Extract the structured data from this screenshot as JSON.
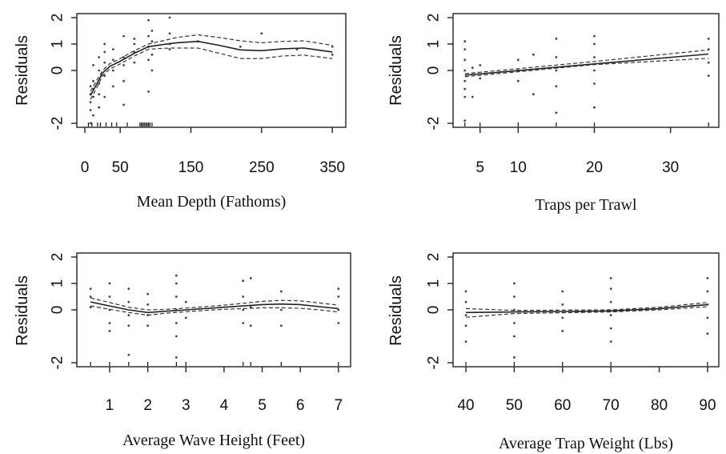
{
  "chart_data": [
    {
      "type": "line",
      "xlabel": "Mean Depth (Fathoms)",
      "ylabel": "Residuals",
      "xlim": [
        0,
        360
      ],
      "ylim": [
        -2,
        2
      ],
      "xticks": [
        0,
        50,
        150,
        250,
        350
      ],
      "yticks": [
        -2,
        0,
        1,
        2
      ],
      "ytick_labels": [
        "-2",
        "0",
        "1",
        "2"
      ],
      "series": [
        {
          "x": [
            8,
            15,
            25,
            35,
            50,
            70,
            90,
            110,
            130,
            160,
            190,
            220,
            250,
            280,
            310,
            350
          ],
          "y": [
            -0.95,
            -0.6,
            -0.1,
            0.15,
            0.35,
            0.65,
            0.9,
            0.98,
            1.05,
            1.1,
            0.95,
            0.78,
            0.75,
            0.82,
            0.85,
            0.7
          ]
        },
        {
          "x": [
            8,
            15,
            25,
            35,
            50,
            70,
            90,
            110,
            130,
            160,
            190,
            220,
            250,
            280,
            310,
            350
          ],
          "y": [
            -0.8,
            -0.45,
            0.0,
            0.25,
            0.45,
            0.75,
            1.0,
            1.12,
            1.25,
            1.35,
            1.25,
            1.12,
            1.05,
            1.1,
            1.12,
            0.95
          ]
        },
        {
          "x": [
            8,
            15,
            25,
            35,
            50,
            70,
            90,
            110,
            130,
            160,
            190,
            220,
            250,
            280,
            310,
            350
          ],
          "y": [
            -1.1,
            -0.75,
            -0.2,
            0.05,
            0.25,
            0.55,
            0.8,
            0.84,
            0.85,
            0.85,
            0.65,
            0.45,
            0.45,
            0.55,
            0.58,
            0.45
          ]
        }
      ],
      "points": [
        {
          "x": 8,
          "y": [
            -2.0,
            -1.5,
            -1.2,
            -0.9,
            -0.6
          ]
        },
        {
          "x": 12,
          "y": [
            -1.7,
            -1.0,
            -0.7,
            -0.4,
            0.2
          ]
        },
        {
          "x": 20,
          "y": [
            -1.4,
            -0.9,
            -0.5,
            0.0,
            0.5
          ]
        },
        {
          "x": 28,
          "y": [
            -1.0,
            -0.2,
            0.3,
            0.7,
            1.0
          ]
        },
        {
          "x": 40,
          "y": [
            -0.6,
            0.0,
            0.4,
            0.8
          ]
        },
        {
          "x": 55,
          "y": [
            -1.3,
            -0.4,
            0.2,
            0.5,
            1.3
          ]
        },
        {
          "x": 70,
          "y": [
            0.3,
            0.7,
            1.0,
            1.2
          ]
        },
        {
          "x": 90,
          "y": [
            -0.8,
            0.4,
            0.9,
            1.3,
            1.9
          ]
        },
        {
          "x": 95,
          "y": [
            0.0,
            0.6,
            1.1,
            1.5
          ]
        },
        {
          "x": 120,
          "y": [
            0.8,
            1.0,
            1.4,
            2.0
          ]
        },
        {
          "x": 160,
          "y": [
            1.1
          ]
        },
        {
          "x": 220,
          "y": [
            0.9
          ]
        },
        {
          "x": 250,
          "y": [
            1.4
          ]
        },
        {
          "x": 300,
          "y": [
            0.8
          ]
        },
        {
          "x": 350,
          "y": [
            0.6,
            0.9
          ]
        }
      ],
      "rug": [
        5,
        10,
        18,
        22,
        30,
        38,
        45,
        60,
        78,
        80,
        82,
        84,
        86,
        88,
        90,
        92,
        95
      ]
    },
    {
      "type": "line",
      "xlabel": "Traps per Trawl",
      "ylabel": "Residuals",
      "xlim": [
        2.5,
        35.5
      ],
      "ylim": [
        -2,
        2
      ],
      "xticks": [
        5,
        10,
        20,
        30
      ],
      "yticks": [
        -2,
        0,
        1,
        2
      ],
      "ytick_labels": [
        "-2",
        "0",
        "1",
        "2"
      ],
      "series": [
        {
          "x": [
            3,
            35
          ],
          "y": [
            -0.18,
            0.62
          ]
        },
        {
          "x": [
            3,
            20,
            35
          ],
          "y": [
            -0.12,
            0.34,
            0.78
          ]
        },
        {
          "x": [
            3,
            20,
            35
          ],
          "y": [
            -0.24,
            0.22,
            0.46
          ]
        }
      ],
      "points": [
        {
          "x": 3,
          "y": [
            -1.9,
            -1.0,
            -0.7,
            -0.4,
            0.0,
            0.4,
            0.8,
            1.1
          ]
        },
        {
          "x": 4,
          "y": [
            -1.0,
            0.1
          ]
        },
        {
          "x": 5,
          "y": [
            -0.3,
            0.2
          ]
        },
        {
          "x": 10,
          "y": [
            -0.4,
            0.0,
            0.4
          ]
        },
        {
          "x": 12,
          "y": [
            -0.9,
            0.6
          ]
        },
        {
          "x": 15,
          "y": [
            -1.6,
            -0.6,
            0.0,
            0.5,
            1.2
          ]
        },
        {
          "x": 20,
          "y": [
            -1.4,
            -0.5,
            0.0,
            0.5,
            1.0,
            1.3
          ]
        },
        {
          "x": 35,
          "y": [
            -0.2,
            0.3,
            0.8,
            1.2
          ]
        }
      ],
      "rug": [
        3,
        5,
        10,
        15,
        20,
        35
      ]
    },
    {
      "type": "line",
      "xlabel": "Average Wave Height (Feet)",
      "ylabel": "Residuals",
      "xlim": [
        0.35,
        7.15
      ],
      "ylim": [
        -2,
        2
      ],
      "xticks": [
        1,
        2,
        3,
        4,
        5,
        6,
        7
      ],
      "yticks": [
        -2,
        0,
        1,
        2
      ],
      "ytick_labels": [
        "-2",
        "0",
        "1",
        "2"
      ],
      "series": [
        {
          "x": [
            0.5,
            1.0,
            1.5,
            2.0,
            2.5,
            3.0,
            3.5,
            4.0,
            4.5,
            5.0,
            5.5,
            6.0,
            6.5,
            7.0
          ],
          "y": [
            0.3,
            0.15,
            0.0,
            -0.1,
            -0.05,
            0.0,
            0.05,
            0.1,
            0.15,
            0.2,
            0.22,
            0.2,
            0.12,
            0.05
          ]
        },
        {
          "x": [
            0.5,
            1.0,
            1.5,
            2.0,
            2.5,
            3.0,
            3.5,
            4.0,
            4.5,
            5.0,
            5.5,
            6.0,
            6.5,
            7.0
          ],
          "y": [
            0.45,
            0.28,
            0.1,
            0.0,
            0.02,
            0.07,
            0.12,
            0.18,
            0.25,
            0.32,
            0.36,
            0.34,
            0.26,
            0.18
          ]
        },
        {
          "x": [
            0.5,
            1.0,
            1.5,
            2.0,
            2.5,
            3.0,
            3.5,
            4.0,
            4.5,
            5.0,
            5.5,
            6.0,
            6.5,
            7.0
          ],
          "y": [
            0.15,
            0.02,
            -0.1,
            -0.2,
            -0.12,
            -0.07,
            -0.02,
            0.02,
            0.05,
            0.08,
            0.08,
            0.06,
            0.0,
            -0.08
          ]
        }
      ],
      "points": [
        {
          "x": 0.5,
          "y": [
            0.1,
            0.5,
            0.8
          ]
        },
        {
          "x": 1.0,
          "y": [
            -0.8,
            -0.5,
            0.0,
            0.5,
            1.0
          ]
        },
        {
          "x": 1.5,
          "y": [
            -1.7,
            -0.6,
            -0.2,
            0.3,
            0.8
          ]
        },
        {
          "x": 2.0,
          "y": [
            -0.6,
            -0.2,
            0.2,
            0.6
          ]
        },
        {
          "x": 2.75,
          "y": [
            -1.8,
            -1.0,
            -0.5,
            0.0,
            0.5,
            1.0,
            1.3
          ]
        },
        {
          "x": 3.0,
          "y": [
            -0.3,
            0.3
          ]
        },
        {
          "x": 4.5,
          "y": [
            -0.5,
            0.0,
            0.5,
            1.1
          ]
        },
        {
          "x": 4.7,
          "y": [
            -0.6,
            0.1,
            1.2
          ]
        },
        {
          "x": 5.5,
          "y": [
            -0.6,
            0.0,
            0.7
          ]
        },
        {
          "x": 7.0,
          "y": [
            -0.5,
            0.0,
            0.5,
            0.8
          ]
        }
      ],
      "rug": [
        0.5,
        1.0,
        1.5,
        2.0,
        2.75,
        3.0,
        4.5,
        4.7,
        5.5,
        7.0
      ]
    },
    {
      "type": "line",
      "xlabel": "Average Trap Weight (Lbs)",
      "ylabel": "Residuals",
      "xlim": [
        39,
        91
      ],
      "ylim": [
        -2,
        2
      ],
      "xticks": [
        40,
        50,
        60,
        70,
        80,
        90
      ],
      "yticks": [
        -2,
        0,
        1,
        2
      ],
      "ytick_labels": [
        "-2",
        "0",
        "1",
        "2"
      ],
      "series": [
        {
          "x": [
            40,
            50,
            60,
            70,
            80,
            90
          ],
          "y": [
            -0.1,
            -0.08,
            -0.06,
            -0.04,
            0.05,
            0.2
          ]
        },
        {
          "x": [
            40,
            50,
            60,
            70,
            80,
            90
          ],
          "y": [
            0.05,
            -0.02,
            -0.01,
            0.0,
            0.1,
            0.28
          ]
        },
        {
          "x": [
            40,
            50,
            60,
            70,
            80,
            90
          ],
          "y": [
            -0.28,
            -0.14,
            -0.11,
            -0.08,
            0.0,
            0.12
          ]
        }
      ],
      "points": [
        {
          "x": 40,
          "y": [
            -1.2,
            -0.6,
            -0.2,
            0.3,
            0.7
          ]
        },
        {
          "x": 50,
          "y": [
            -1.8,
            -1.0,
            -0.5,
            0.0,
            0.5,
            1.0
          ]
        },
        {
          "x": 60,
          "y": [
            -0.8,
            -0.3,
            0.2,
            0.7
          ]
        },
        {
          "x": 70,
          "y": [
            -1.2,
            -0.7,
            -0.2,
            0.3,
            0.8,
            1.2
          ]
        },
        {
          "x": 90,
          "y": [
            -0.9,
            -0.3,
            0.2,
            0.7,
            1.2
          ]
        }
      ],
      "rug": [
        40,
        50,
        60,
        70,
        90
      ]
    }
  ]
}
